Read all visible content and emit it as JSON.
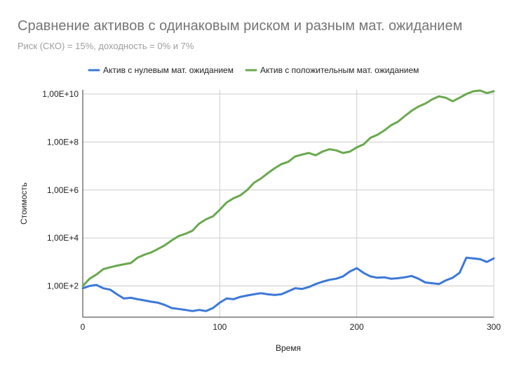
{
  "chart_data": {
    "type": "line",
    "title": "Сравнение активов с одинаковым риском и разным мат. ожиданием",
    "subtitle": "Риск (СКО) = 15%, доходность = 0% и 7%",
    "xlabel": "Время",
    "ylabel": "Стоимость",
    "xlim": [
      0,
      300
    ],
    "ylim": [
      5,
      15000000000
    ],
    "y_scale": "log",
    "x_ticks": [
      0,
      100,
      200,
      300
    ],
    "x_tick_labels": [
      "0",
      "100",
      "200",
      "300"
    ],
    "y_ticks": [
      100,
      10000,
      1000000,
      100000000,
      10000000000
    ],
    "y_tick_labels": [
      "1,00E+2",
      "1,00E+4",
      "1,00E+6",
      "1,00E+8",
      "1,00E+10"
    ],
    "grid": true,
    "legend_position": "top",
    "series": [
      {
        "name": "Актив с нулевым мат. ожиданием",
        "color": "#3c78d8",
        "x": [
          0,
          5,
          10,
          15,
          20,
          25,
          30,
          35,
          40,
          45,
          50,
          55,
          60,
          65,
          70,
          75,
          80,
          85,
          90,
          95,
          100,
          105,
          110,
          115,
          120,
          125,
          130,
          135,
          140,
          145,
          150,
          155,
          160,
          165,
          170,
          175,
          180,
          185,
          190,
          195,
          200,
          205,
          210,
          215,
          220,
          225,
          230,
          235,
          240,
          245,
          250,
          255,
          260,
          265,
          270,
          275,
          280,
          285,
          290,
          295,
          300
        ],
        "values": [
          80,
          100,
          110,
          80,
          70,
          45,
          30,
          32,
          28,
          25,
          22,
          20,
          16,
          12,
          11,
          10,
          9,
          10,
          9,
          12,
          20,
          30,
          28,
          35,
          40,
          45,
          50,
          45,
          42,
          45,
          60,
          80,
          75,
          90,
          120,
          150,
          180,
          200,
          250,
          400,
          550,
          350,
          250,
          220,
          230,
          200,
          210,
          230,
          260,
          200,
          140,
          130,
          120,
          170,
          220,
          350,
          1500,
          1400,
          1300,
          1000,
          1400
        ]
      },
      {
        "name": "Актив с положительным мат. ожиданием",
        "color": "#6aa84f",
        "x": [
          0,
          5,
          10,
          15,
          20,
          25,
          30,
          35,
          40,
          45,
          50,
          55,
          60,
          65,
          70,
          75,
          80,
          85,
          90,
          95,
          100,
          105,
          110,
          115,
          120,
          125,
          130,
          135,
          140,
          145,
          150,
          155,
          160,
          165,
          170,
          175,
          180,
          185,
          190,
          195,
          200,
          205,
          210,
          215,
          220,
          225,
          230,
          235,
          240,
          245,
          250,
          255,
          260,
          265,
          270,
          275,
          280,
          285,
          290,
          295,
          300
        ],
        "values": [
          100,
          200,
          300,
          500,
          600,
          700,
          800,
          900,
          1500,
          2000,
          2500,
          3500,
          5000,
          8000,
          12000,
          15000,
          20000,
          40000,
          60000,
          80000,
          150000,
          300000,
          450000,
          600000,
          1000000,
          2000000,
          3000000,
          5000000,
          8000000,
          12000000,
          15000000,
          25000000,
          30000000,
          35000000,
          28000000,
          40000000,
          50000000,
          45000000,
          35000000,
          40000000,
          60000000,
          80000000,
          150000000,
          200000000,
          300000000,
          500000000,
          700000000,
          1200000000,
          2000000000,
          3000000000,
          4000000000,
          6000000000,
          8000000000,
          7000000000,
          5000000000,
          7000000000,
          10000000000,
          13000000000,
          14000000000,
          11000000000,
          13000000000
        ]
      }
    ]
  }
}
